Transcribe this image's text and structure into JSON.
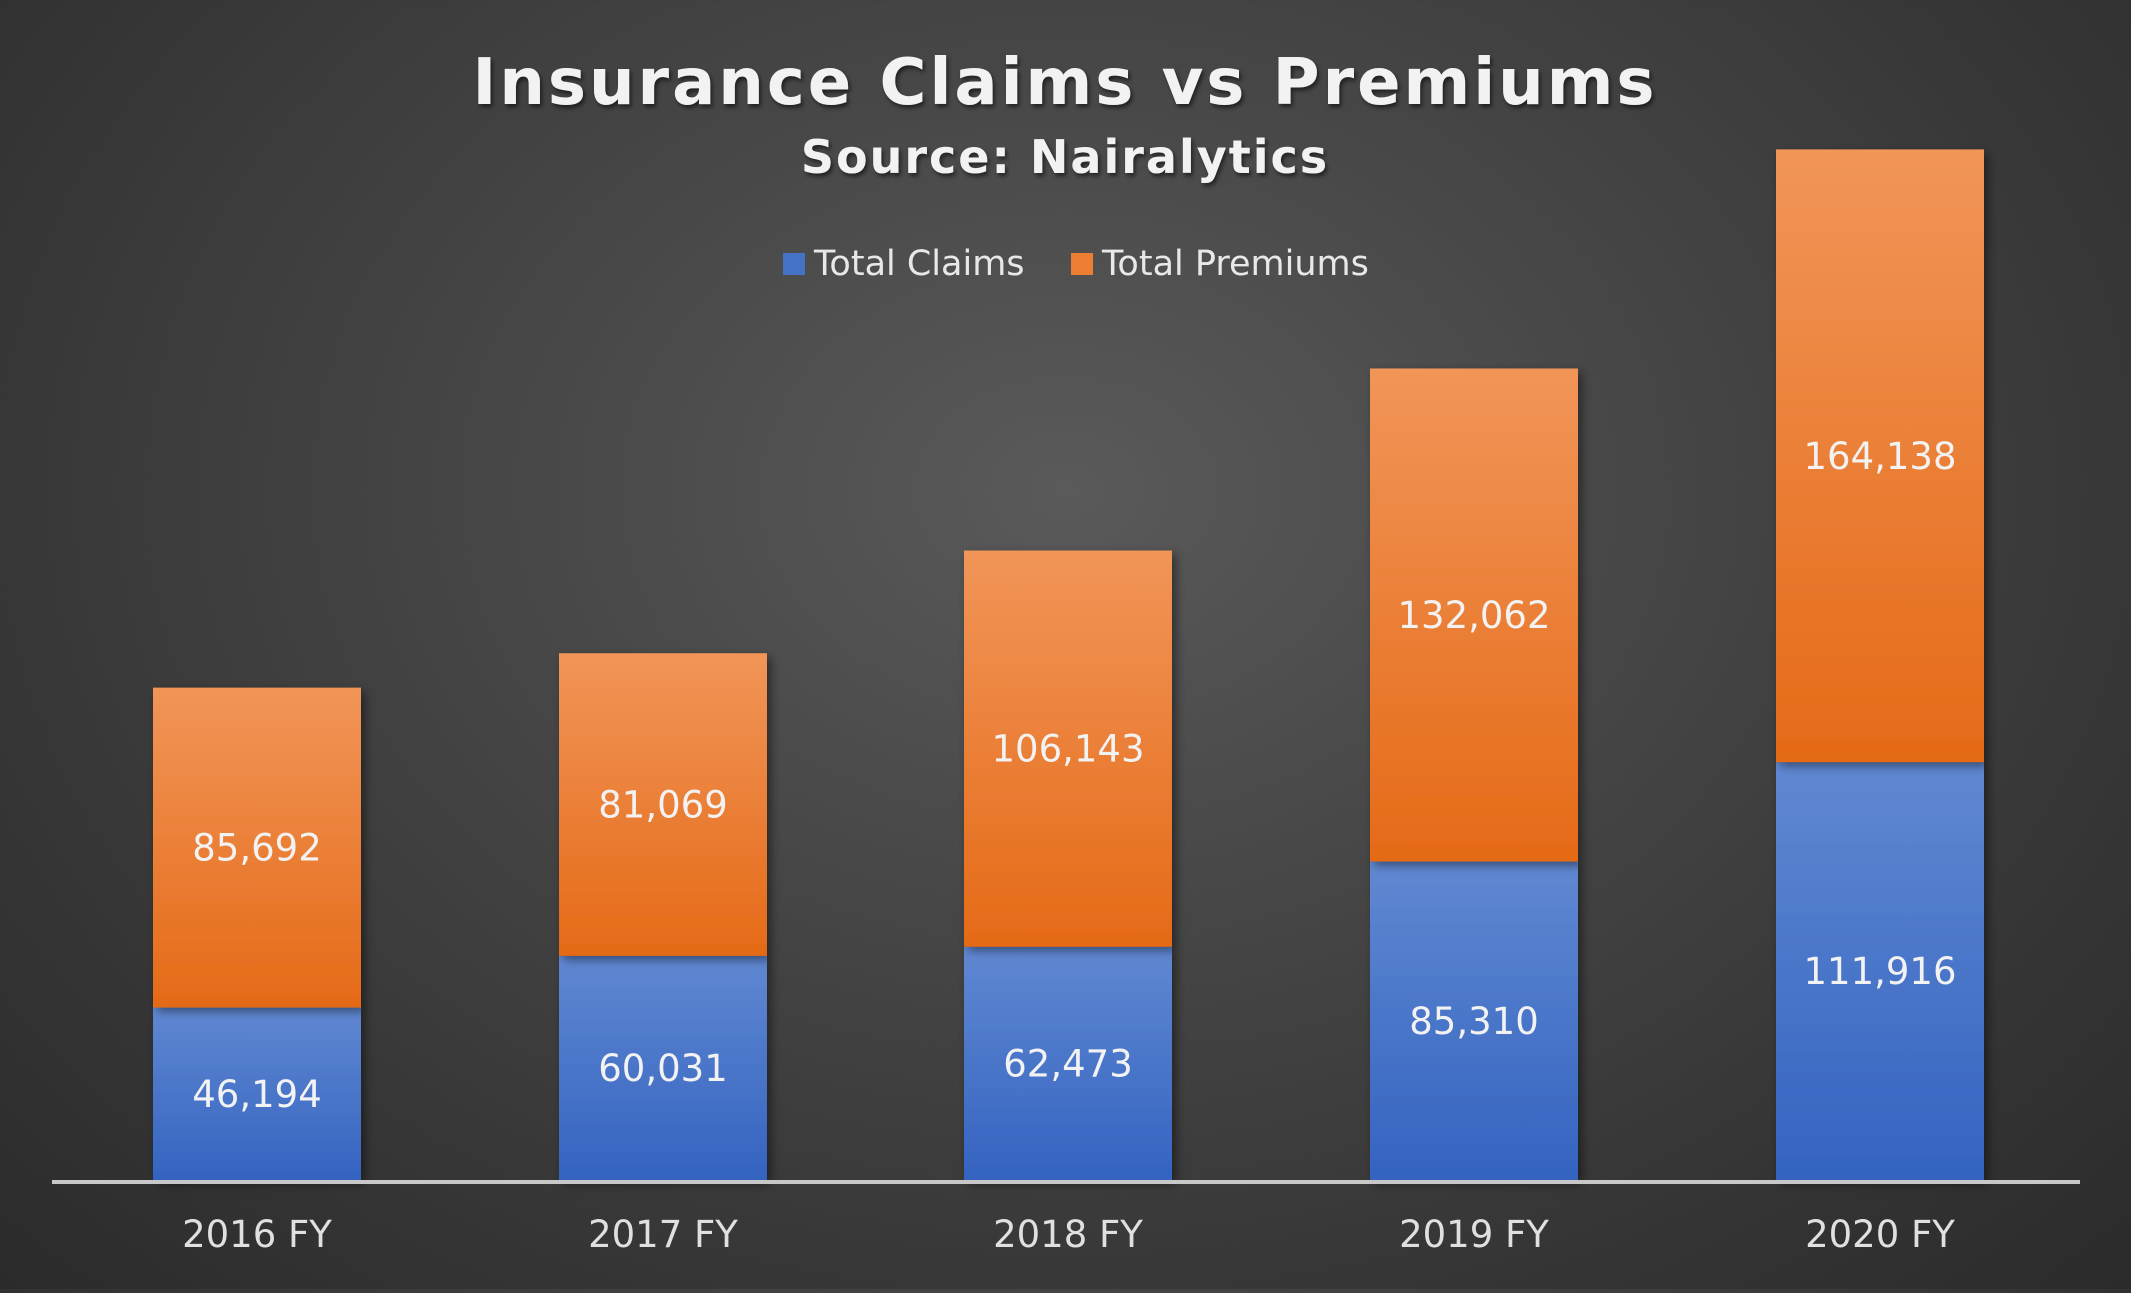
{
  "chart_data": {
    "type": "bar",
    "stacked": true,
    "title": "Insurance Claims vs Premiums",
    "subtitle": "Source: Nairalytics",
    "categories": [
      "2016 FY",
      "2017 FY",
      "2018 FY",
      "2019 FY",
      "2020 FY"
    ],
    "series": [
      {
        "name": "Total Claims",
        "values": [
          46194,
          60031,
          62473,
          85310,
          111916
        ],
        "labels": [
          "46,194",
          "60,031",
          "62,473",
          "85,310",
          "111,916"
        ],
        "color": "#4472C4"
      },
      {
        "name": "Total Premiums",
        "values": [
          85692,
          81069,
          106143,
          132062,
          164138
        ],
        "labels": [
          "85,692",
          "81,069",
          "106,143",
          "132,062",
          "164,138"
        ],
        "color": "#ED7D31"
      }
    ],
    "ylim": [
      0,
      300000
    ],
    "grid": false,
    "legend_position": "top"
  }
}
